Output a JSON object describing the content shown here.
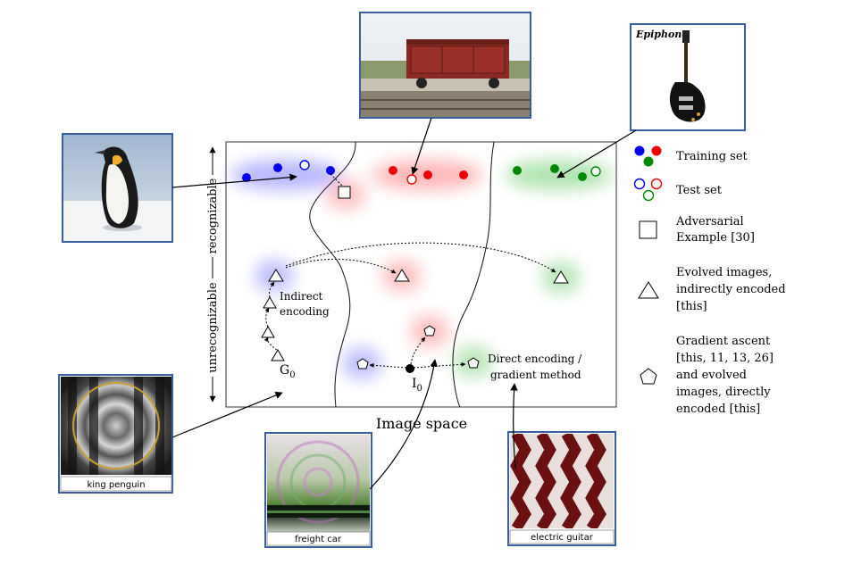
{
  "diagram": {
    "x_axis_label": "Image space",
    "y_axis_labels": {
      "top": "recognizable",
      "bottom": "unrecognizable"
    },
    "annotations": {
      "indirect_line1": "Indirect",
      "indirect_line2": "encoding",
      "g0_base": "G",
      "g0_sub": "0",
      "i0_base": "I",
      "i0_sub": "0",
      "direct_line1": "Direct encoding /",
      "direct_line2": "gradient method"
    },
    "thumbnail_captions": {
      "king_penguin": "king penguin",
      "freight_car": "freight car",
      "electric_guitar": "electric guitar"
    },
    "guitar_brand": "Epiphone",
    "class_colors": {
      "blue": "#0000ee",
      "red": "#ee0000",
      "green": "#008800"
    },
    "frame_color": "#3a5fa0"
  },
  "legend": {
    "training": "Training set",
    "test": "Test set",
    "adversarial_line1": "Adversarial",
    "adversarial_line2": "Example [30]",
    "evolved_line1": "Evolved images,",
    "evolved_line2": "indirectly encoded",
    "evolved_line3": "[this]",
    "gradient_line1": "Gradient ascent",
    "gradient_line2": "[this, 11, 13, 26]",
    "gradient_line3": "and evolved",
    "gradient_line4": "images, directly",
    "gradient_line5": "encoded [this]"
  }
}
